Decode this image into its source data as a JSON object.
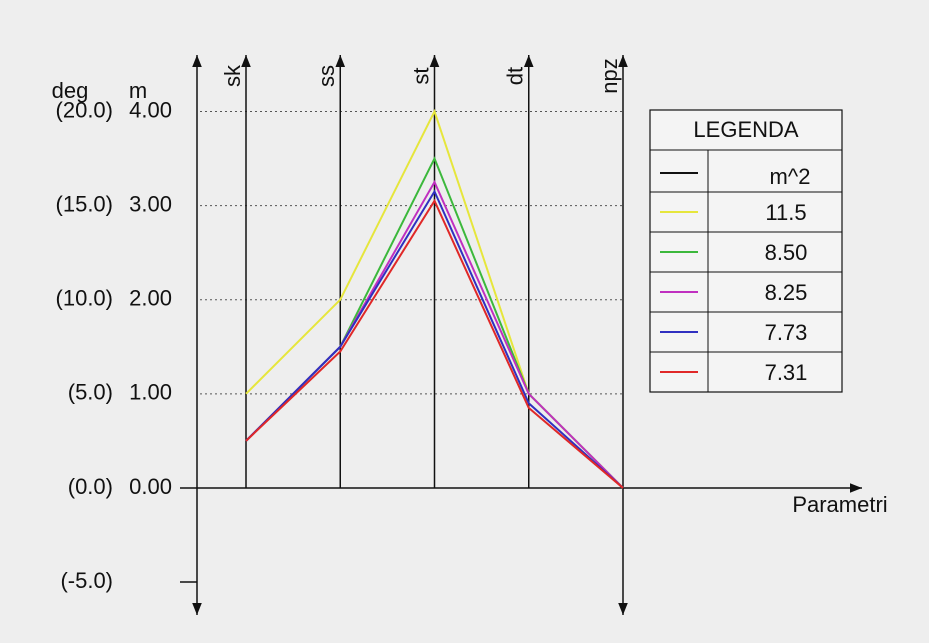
{
  "chart_data": {
    "type": "line",
    "categories": [
      "sk",
      "ss",
      "st",
      "dt",
      "npz"
    ],
    "x_label": "Parametri",
    "y_label": "m",
    "y2_label": "deg",
    "ylim": [
      -1.35,
      4.6
    ],
    "yticks": [
      {
        "value": 0,
        "label": "0.00"
      },
      {
        "value": 1,
        "label": "1.00"
      },
      {
        "value": 2,
        "label": "2.00"
      },
      {
        "value": 3,
        "label": "3.00"
      },
      {
        "value": 4,
        "label": "4.00"
      }
    ],
    "y2lim": [
      -6.75,
      23
    ],
    "y2ticks": [
      {
        "value": -5,
        "label": "(-5.0)"
      },
      {
        "value": 0,
        "label": "(0.0)"
      },
      {
        "value": 5,
        "label": "(5.0)"
      },
      {
        "value": 10,
        "label": "(10.0)"
      },
      {
        "value": 15,
        "label": "(15.0)"
      },
      {
        "value": 20,
        "label": "(20.0)"
      }
    ],
    "grid": true,
    "legend_title": "LEGENDA",
    "legend_header": "m^2",
    "series": [
      {
        "name": "11.5",
        "color": "#e6e63c",
        "values": [
          1.0,
          2.0,
          4.0,
          1.0,
          0
        ]
      },
      {
        "name": "8.50",
        "color": "#3cb83c",
        "values": [
          0.5,
          1.5,
          3.5,
          1.0,
          0
        ]
      },
      {
        "name": "8.25",
        "color": "#c030c0",
        "values": [
          0.5,
          1.5,
          3.25,
          1.0,
          0
        ]
      },
      {
        "name": "7.73",
        "color": "#3030c0",
        "values": [
          0.5,
          1.5,
          3.15,
          0.9,
          0
        ]
      },
      {
        "name": "7.31",
        "color": "#e02828",
        "values": [
          0.5,
          1.45,
          3.05,
          0.85,
          0
        ]
      }
    ]
  }
}
